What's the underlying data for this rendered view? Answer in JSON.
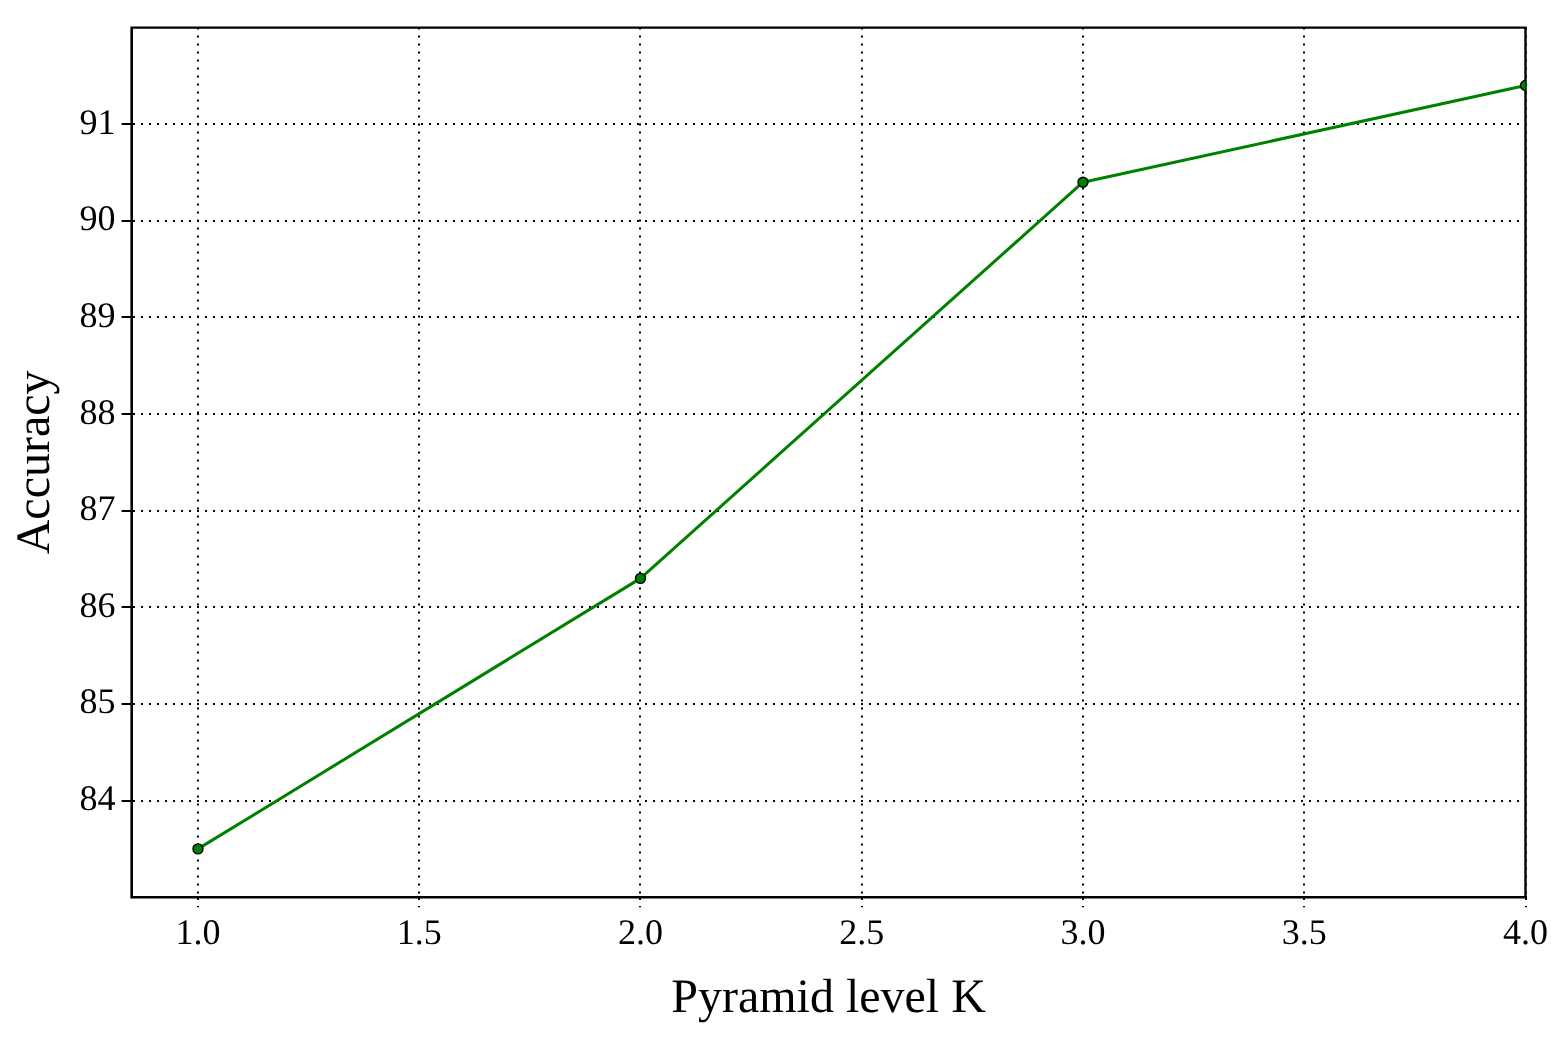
{
  "chart_data": {
    "type": "line",
    "xlabel": "Pyramid level K",
    "ylabel": "Accuracy",
    "x": [
      1.0,
      2.0,
      3.0,
      4.0
    ],
    "series": [
      {
        "color": "#008000",
        "values": [
          83.5,
          86.3,
          90.4,
          91.4
        ]
      }
    ],
    "xlim": [
      0.85,
      4.0
    ],
    "xticks": [
      {
        "value": 1,
        "label": "1.0"
      },
      {
        "value": 1.5,
        "label": "1.5"
      },
      {
        "value": 2,
        "label": "2.0"
      },
      {
        "value": 2.5,
        "label": "2.5"
      },
      {
        "value": 3,
        "label": "3.0"
      },
      {
        "value": 3.5,
        "label": "3.5"
      },
      {
        "value": 4,
        "label": "4.0"
      }
    ],
    "ylim": [
      83,
      92
    ],
    "yticks": [
      84,
      85,
      86,
      87,
      88,
      89,
      90,
      91
    ],
    "grid": true,
    "marker": "circle",
    "line_style": "solid",
    "legend": false
  }
}
